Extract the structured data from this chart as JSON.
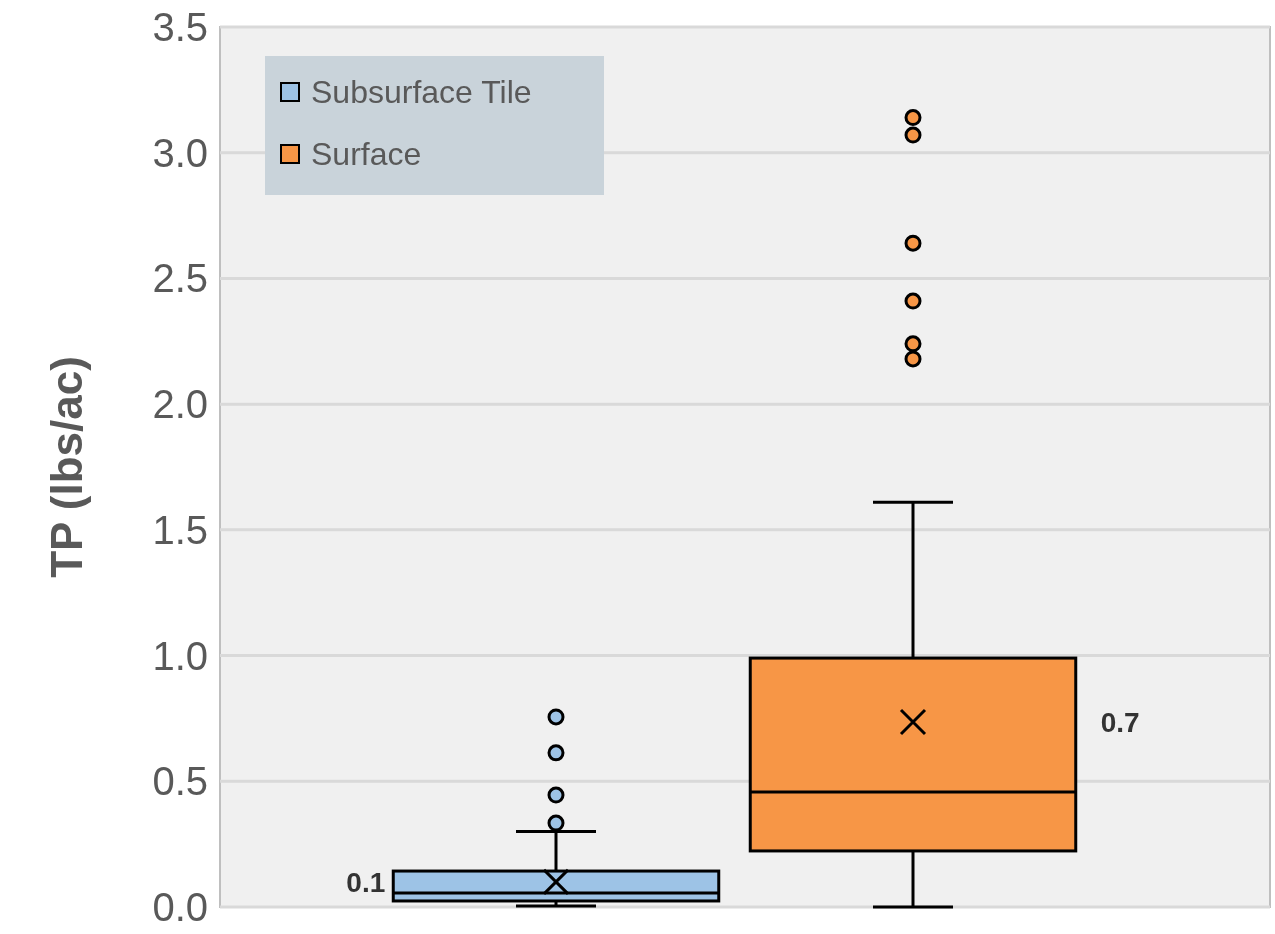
{
  "chart_data": {
    "type": "box",
    "ylabel": "TP (lbs/ac)",
    "categories": [
      null
    ],
    "series": [
      {
        "name": "Subsurface Tile",
        "color": "#9dc3e6",
        "boxes": [
          {
            "low": 0.004,
            "q1": 0.024,
            "median": 0.056,
            "q3": 0.143,
            "high": 0.3,
            "mean": 0.1,
            "outliers": [
              0.334,
              0.445,
              0.613,
              0.756
            ]
          }
        ]
      },
      {
        "name": "Surface",
        "color": "#f79646",
        "boxes": [
          {
            "low": 0,
            "q1": 0.223,
            "median": 0.457,
            "q3": 0.99,
            "high": 1.61,
            "mean": 0.736,
            "outliers": [
              2.18,
              2.24,
              2.41,
              2.64,
              3.07,
              3.14
            ]
          }
        ]
      }
    ],
    "annotations": [
      "0.1",
      "0.7"
    ],
    "ylim": [
      0,
      3.5
    ],
    "yticks": [
      {
        "value": 0,
        "label": "0.0"
      },
      {
        "value": 0.5,
        "label": "0.5"
      },
      {
        "value": 1,
        "label": "1.0"
      },
      {
        "value": 1.5,
        "label": "1.5"
      },
      {
        "value": 2,
        "label": "2.0"
      },
      {
        "value": 2.5,
        "label": "2.5"
      },
      {
        "value": 3,
        "label": "3.0"
      },
      {
        "value": 3.5,
        "label": "3.5"
      }
    ],
    "grid": "y",
    "legend": "top left"
  }
}
